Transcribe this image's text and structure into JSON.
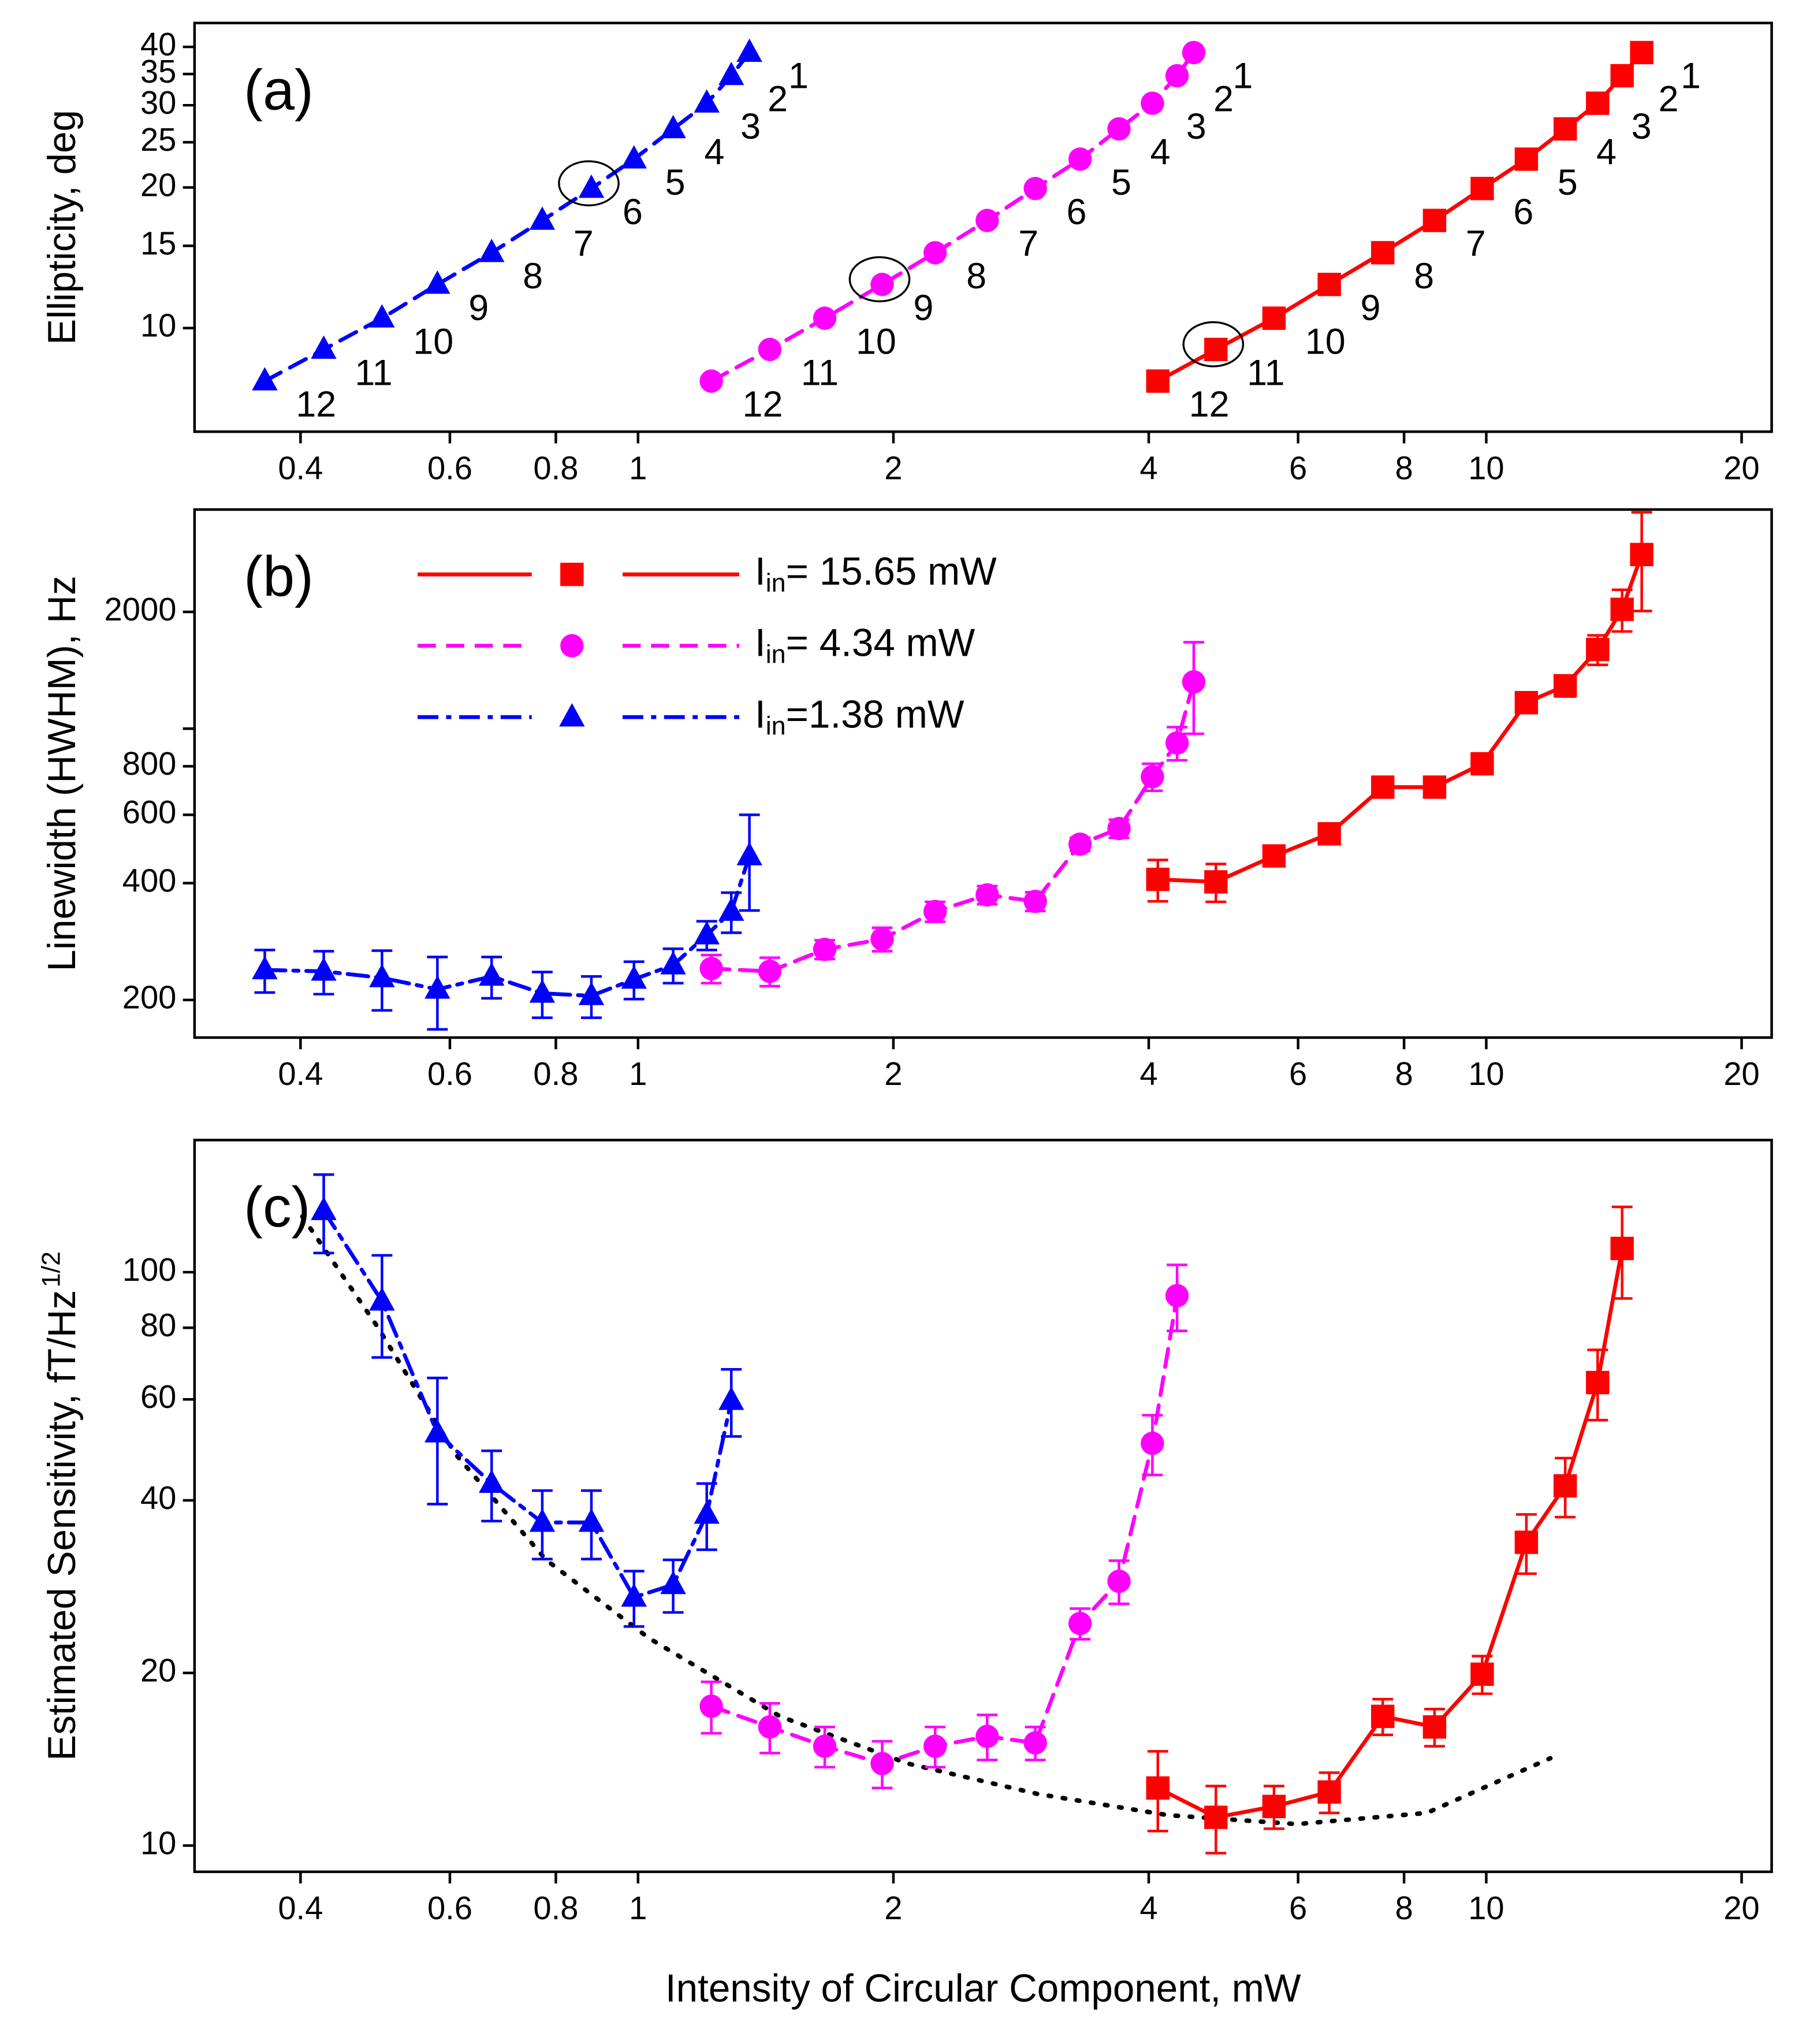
{
  "chart_data": [
    {
      "type": "scatter",
      "label": "(a)",
      "ylabel": "Ellipticity, deg",
      "log_x": true,
      "log_y": true,
      "xlim": [
        0.3,
        21.7
      ],
      "xticks": [
        0.4,
        0.6,
        0.8,
        1,
        2,
        4,
        6,
        8,
        10,
        20
      ],
      "ylim": [
        6,
        45
      ],
      "yticks": [
        10,
        15,
        20,
        25,
        30,
        35,
        40
      ],
      "point_labels": [
        12,
        11,
        10,
        9,
        8,
        7,
        6,
        5,
        4,
        3,
        2,
        1
      ],
      "series": [
        {
          "color": "#0000ff",
          "marker": "triangle",
          "dash": "dash",
          "circled": 6,
          "x": [
            0.363,
            0.426,
            0.499,
            0.58,
            0.672,
            0.771,
            0.881,
            0.989,
            1.1,
            1.205,
            1.288,
            1.353
          ],
          "values": [
            7.7,
            9.0,
            10.5,
            12.4,
            14.5,
            17.0,
            19.9,
            23.0,
            26.7,
            30.3,
            34.7,
            38.9
          ]
        },
        {
          "color": "#ff00ff",
          "marker": "circle",
          "dash": "dash",
          "circled": 3,
          "x": [
            1.22,
            1.43,
            1.66,
            1.94,
            2.24,
            2.58,
            2.94,
            3.32,
            3.69,
            4.04,
            4.32,
            4.52
          ],
          "values": [
            7.7,
            9.0,
            10.5,
            12.4,
            14.5,
            17.0,
            19.9,
            23.0,
            26.7,
            30.3,
            34.7,
            38.9
          ]
        },
        {
          "color": "#ff0000",
          "marker": "square",
          "dash": "solid",
          "circled": 1,
          "x": [
            4.1,
            4.8,
            5.62,
            6.53,
            7.55,
            8.69,
            9.89,
            11.15,
            12.39,
            13.53,
            14.46,
            15.25
          ],
          "values": [
            7.7,
            9.0,
            10.5,
            12.4,
            14.5,
            17.0,
            19.9,
            23.0,
            26.7,
            30.3,
            34.7,
            38.9
          ]
        }
      ]
    },
    {
      "type": "scatter",
      "label": "(b)",
      "ylabel": "Linewidth (HWHM), Hz",
      "log_x": true,
      "log_y": true,
      "xlim": [
        0.3,
        21.7
      ],
      "xticks": [
        0.4,
        0.6,
        0.8,
        1,
        2,
        4,
        6,
        8,
        10,
        20
      ],
      "ylim": [
        160,
        3670
      ],
      "yticks": [
        200,
        400,
        600,
        800,
        2000
      ],
      "yminor": [
        1000
      ],
      "series": [
        {
          "name": "Iin= 15.65 mW",
          "color": "#ff0000",
          "marker": "square",
          "dash": "solid",
          "x": [
            4.1,
            4.8,
            5.62,
            6.53,
            7.55,
            8.69,
            9.89,
            11.15,
            12.39,
            13.53,
            14.46,
            15.25
          ],
          "values": [
            409,
            403,
            470,
            536,
            707,
            707,
            812,
            1167,
            1290,
            1600,
            2030,
            2810
          ],
          "errors": [
            50,
            45,
            25,
            25,
            25,
            25,
            25,
            70,
            80,
            140,
            250,
            800
          ]
        },
        {
          "name": "Iin= 4.34 mW",
          "color": "#ff00ff",
          "marker": "circle",
          "dash": "dash",
          "x": [
            1.22,
            1.43,
            1.66,
            1.94,
            2.24,
            2.58,
            2.94,
            3.32,
            3.69,
            4.04,
            4.32,
            4.52
          ],
          "values": [
            241,
            237,
            270,
            287,
            338,
            373,
            359,
            504,
            553,
            752,
            919,
            1320
          ],
          "errors": [
            20,
            20,
            15,
            20,
            20,
            20,
            20,
            20,
            30,
            60,
            90,
            350
          ]
        },
        {
          "name": "Iin=1.38 mW",
          "color": "#0000ff",
          "marker": "triangle",
          "dash": "dashdot",
          "x": [
            0.363,
            0.426,
            0.499,
            0.58,
            0.672,
            0.771,
            0.881,
            0.989,
            1.1,
            1.205,
            1.288,
            1.353
          ],
          "values": [
            239,
            237,
            228,
            213,
            230,
            208,
            205,
            226,
            246,
            294,
            338,
            470
          ],
          "errors": [
            30,
            30,
            40,
            45,
            28,
            28,
            25,
            25,
            25,
            25,
            40,
            130
          ]
        }
      ]
    },
    {
      "type": "scatter",
      "label": "(c)",
      "ylabel": "Estimated Sensitivity, fT/Hz",
      "ylabel_sup": "1/2",
      "xlabel": "Intensity of Circular Component, mW",
      "log_x": true,
      "log_y": true,
      "xlim": [
        0.3,
        21.7
      ],
      "xticks": [
        0.4,
        0.6,
        0.8,
        1,
        2,
        4,
        6,
        8,
        10,
        20
      ],
      "ylim": [
        9,
        170
      ],
      "yticks": [
        10,
        20,
        40,
        60,
        80,
        100
      ],
      "series": [
        {
          "color": "#000000",
          "dash": "dot",
          "x": [
            0.402,
            0.493,
            0.609,
            0.779,
            1.03,
            1.47,
            2.08,
            2.96,
            4.21,
            5.98,
            8.51,
            11.9
          ],
          "values": [
            125,
            80.3,
            48.2,
            31.5,
            23.0,
            16.8,
            13.9,
            12.3,
            11.3,
            10.9,
            11.4,
            14.2
          ]
        },
        {
          "color": "#0000ff",
          "marker": "triangle",
          "dash": "dashdot",
          "x": [
            0.426,
            0.499,
            0.58,
            0.672,
            0.771,
            0.881,
            0.989,
            1.1,
            1.205,
            1.288
          ],
          "values": [
            128,
            89,
            52.4,
            42.8,
            36.6,
            36.6,
            27.1,
            28.5,
            37.8,
            59.7
          ],
          "errors": [
            20,
            18,
            13,
            6,
            5,
            5,
            3,
            3,
            5,
            8
          ]
        },
        {
          "color": "#ff00ff",
          "marker": "circle",
          "dash": "dash",
          "x": [
            1.22,
            1.43,
            1.66,
            1.94,
            2.24,
            2.58,
            2.94,
            3.32,
            3.69,
            4.04,
            4.32
          ],
          "values": [
            17.5,
            16.1,
            14.9,
            13.9,
            14.9,
            15.5,
            15.1,
            24.4,
            28.9,
            50.3,
            91
          ],
          "errors": [
            1.8,
            1.6,
            1.2,
            1.3,
            1.2,
            1.4,
            1,
            1.5,
            2.5,
            6,
            12
          ]
        },
        {
          "color": "#ff0000",
          "marker": "square",
          "dash": "solid",
          "x": [
            4.1,
            4.8,
            5.62,
            6.53,
            7.55,
            8.69,
            9.89,
            11.15,
            12.39,
            13.53,
            14.46
          ],
          "values": [
            12.6,
            11.2,
            11.7,
            12.4,
            16.8,
            16.1,
            19.9,
            33.8,
            42.4,
            64.2,
            110
          ],
          "errors": [
            2,
            1.5,
            1,
            1,
            1.2,
            1.2,
            1.5,
            4,
            5,
            9,
            20
          ]
        }
      ]
    }
  ]
}
